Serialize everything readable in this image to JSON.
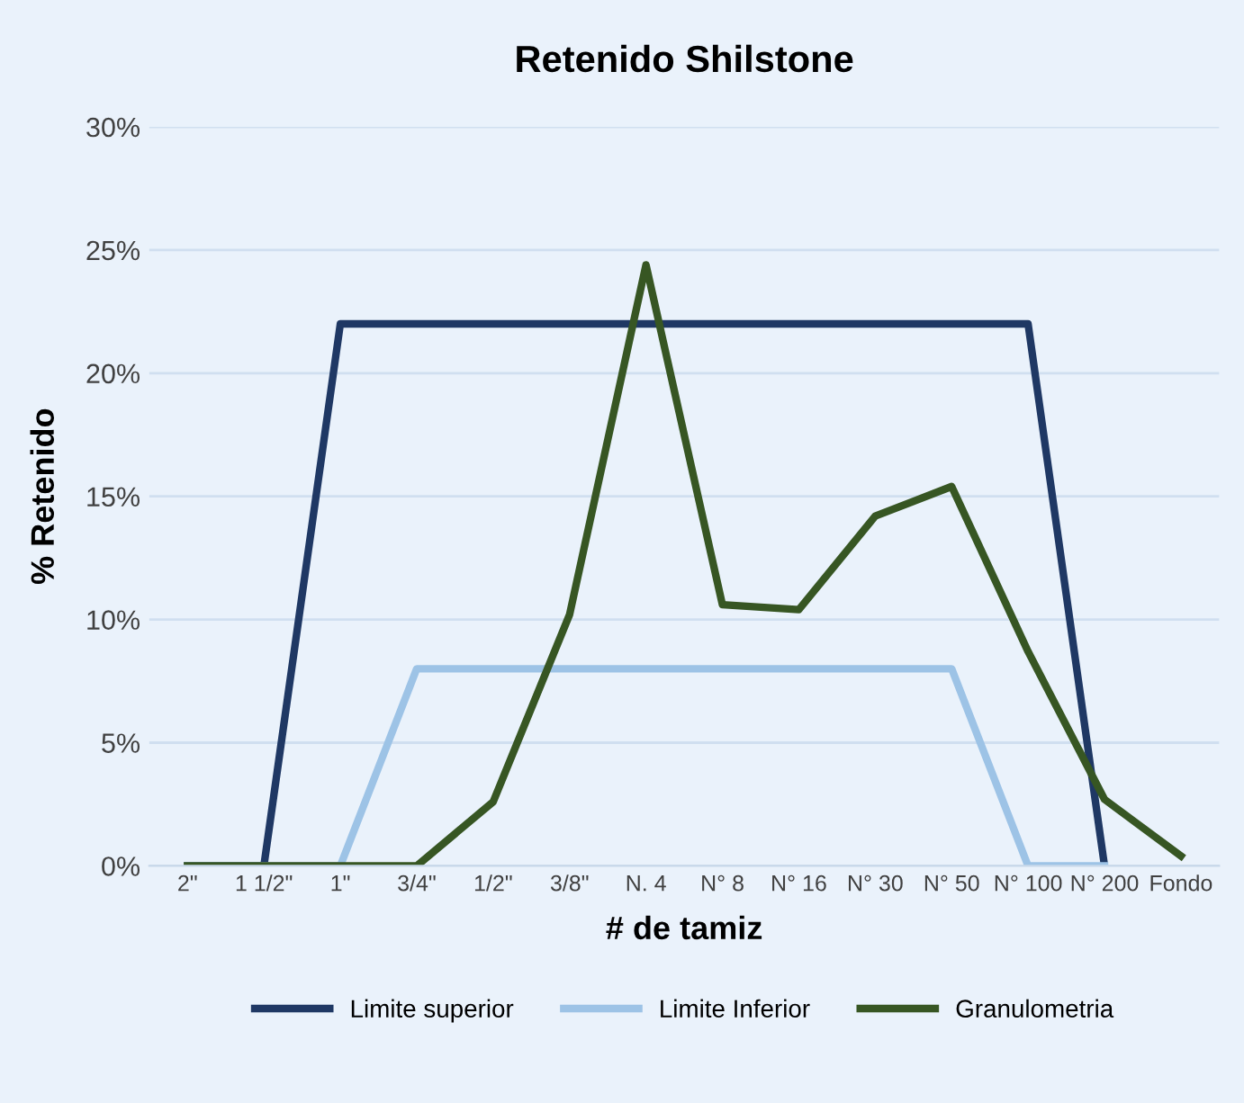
{
  "chart_data": {
    "type": "line",
    "title": "Retenido Shilstone",
    "xlabel": "# de tamiz",
    "ylabel": "% Retenido",
    "categories": [
      "2\"",
      "1 1/2\"",
      "1\"",
      "3/4\"",
      "1/2\"",
      "3/8\"",
      "N. 4",
      "N° 8",
      "N° 16",
      "N° 30",
      "N° 50",
      "N° 100",
      "N° 200",
      "Fondo"
    ],
    "series": [
      {
        "name": "Limite superior",
        "color": "#1f3864",
        "values": [
          0,
          0,
          22,
          22,
          22,
          22,
          22,
          22,
          22,
          22,
          22,
          22,
          0,
          null
        ]
      },
      {
        "name": "Limite Inferior",
        "color": "#9dc3e6",
        "values": [
          0,
          0,
          0,
          8,
          8,
          8,
          8,
          8,
          8,
          8,
          8,
          0,
          0,
          null
        ]
      },
      {
        "name": "Granulometria",
        "color": "#375623",
        "values": [
          0,
          0,
          0,
          0,
          2.6,
          10.2,
          24.4,
          10.6,
          10.4,
          14.2,
          15.4,
          8.7,
          2.7,
          0.4
        ]
      }
    ],
    "ylim": [
      0,
      30
    ],
    "yticks": [
      {
        "value": 0,
        "label": "0%"
      },
      {
        "value": 5,
        "label": "5%"
      },
      {
        "value": 10,
        "label": "10%"
      },
      {
        "value": 15,
        "label": "15%"
      },
      {
        "value": 20,
        "label": "20%"
      },
      {
        "value": 25,
        "label": "25%"
      },
      {
        "value": 30,
        "label": "30%"
      }
    ],
    "grid": "y",
    "legend": "bottom",
    "marker": "none",
    "line_style": "solid"
  }
}
